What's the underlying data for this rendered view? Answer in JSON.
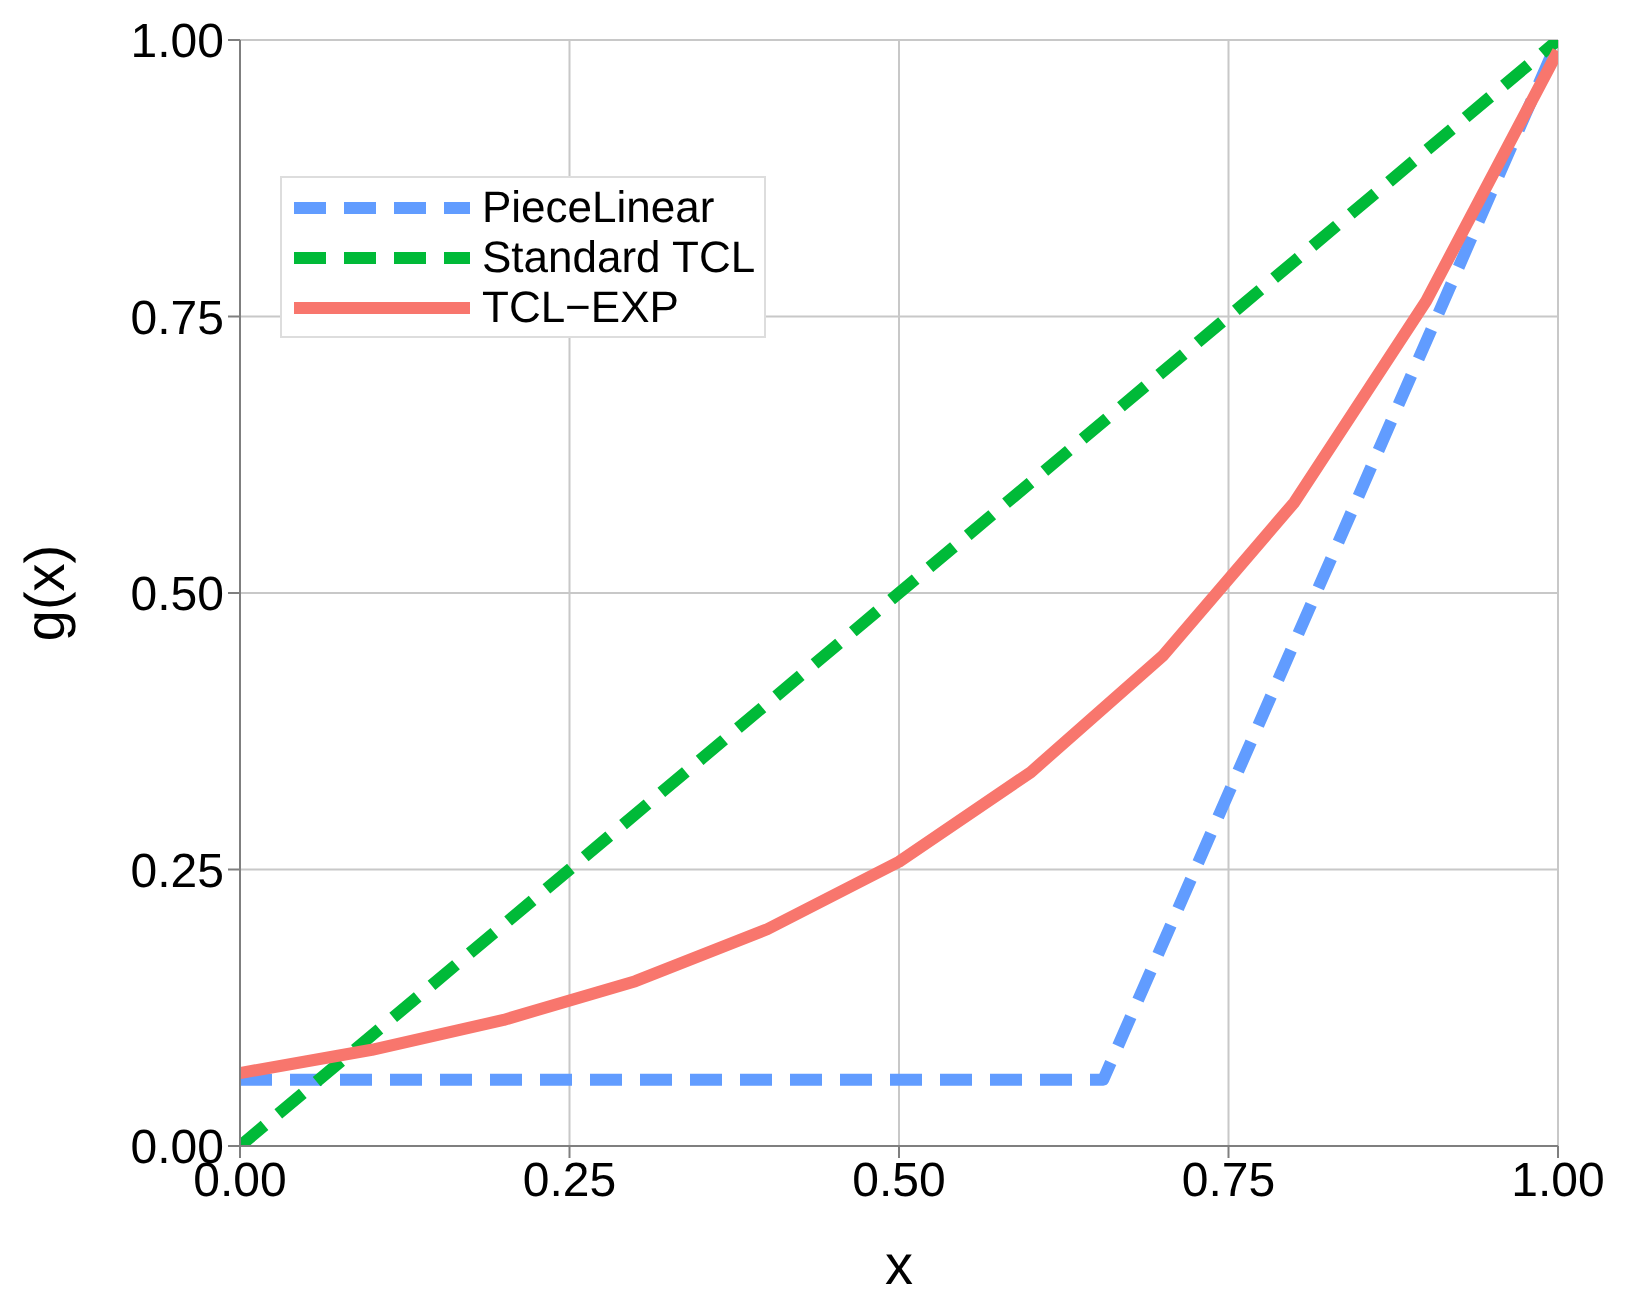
{
  "chart_data": {
    "type": "line",
    "xlabel": "x",
    "ylabel": "g(x)",
    "xlim": [
      0,
      1
    ],
    "ylim": [
      0,
      1
    ],
    "xticks": [
      {
        "value": 0,
        "label": "0.00"
      },
      {
        "value": 0.25,
        "label": "0.25"
      },
      {
        "value": 0.5,
        "label": "0.50"
      },
      {
        "value": 0.75,
        "label": "0.75"
      },
      {
        "value": 1,
        "label": "1.00"
      }
    ],
    "yticks": [
      {
        "value": 0,
        "label": "0.00"
      },
      {
        "value": 0.25,
        "label": "0.25"
      },
      {
        "value": 0.5,
        "label": "0.50"
      },
      {
        "value": 0.75,
        "label": "0.75"
      },
      {
        "value": 1,
        "label": "1.00"
      }
    ],
    "grid": true,
    "legend": "top left",
    "marker": "none",
    "series": [
      {
        "name": "PieceLinear",
        "color": "#619cff",
        "line_style": "dashed",
        "x": [
          0,
          0.655,
          1
        ],
        "values": [
          0.06,
          0.06,
          1
        ]
      },
      {
        "name": "Standard TCL",
        "color": "#00ba38",
        "line_style": "dashed",
        "x": [
          0,
          1
        ],
        "values": [
          0,
          1
        ]
      },
      {
        "name": "TCL−EXP",
        "color": "#f8766d",
        "line_style": "solid",
        "x": [
          0,
          0.1,
          0.2,
          0.3,
          0.4,
          0.5,
          0.6,
          0.7,
          0.8,
          0.9,
          1
        ],
        "values": [
          0.066,
          0.087,
          0.114,
          0.149,
          0.196,
          0.257,
          0.338,
          0.443,
          0.582,
          0.764,
          0.99
        ]
      }
    ]
  }
}
